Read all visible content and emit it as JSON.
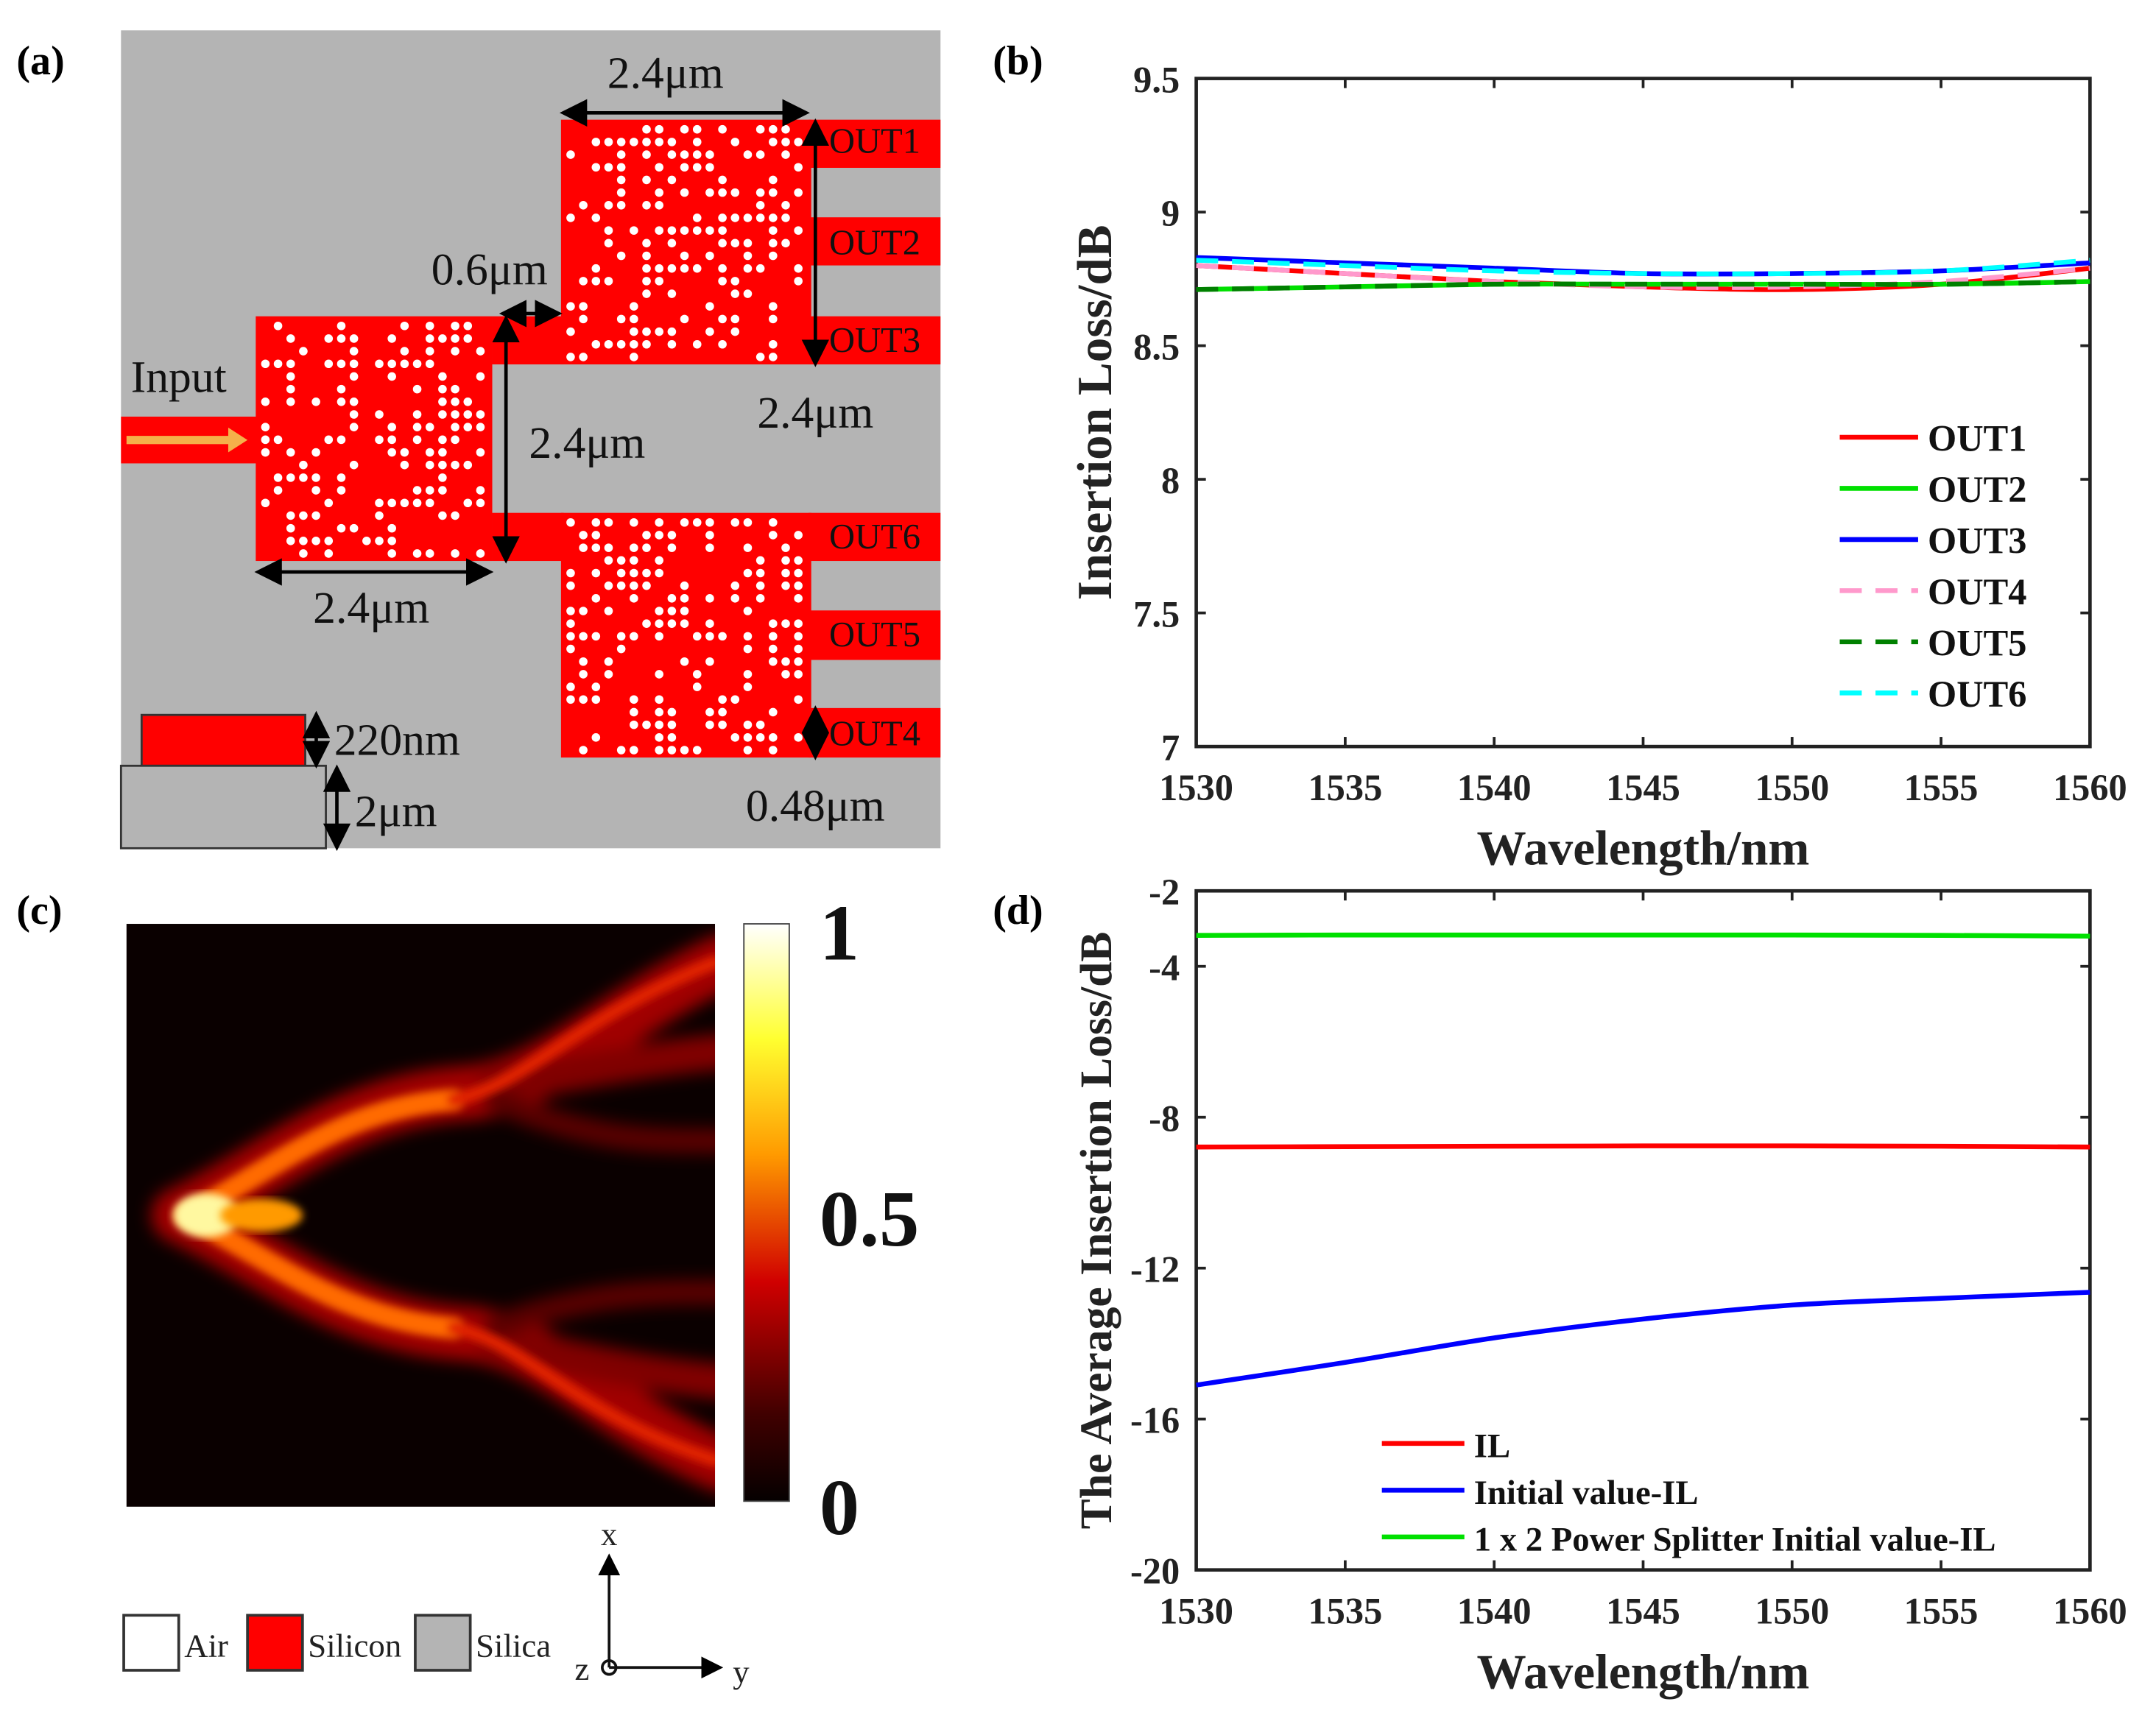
{
  "panel_labels": {
    "a": "(a)",
    "b": "(b)",
    "c": "(c)",
    "d": "(d)"
  },
  "panel_a": {
    "input_label": "Input",
    "dim_top": "2.4μm",
    "dim_gap": "0.6μm",
    "dim_first_height": "2.4μm",
    "dim_first_width": "2.4μm",
    "dim_right_spacing": "2.4μm",
    "dim_output_width": "0.48μm",
    "dim_silicon_thickness": "220nm",
    "dim_silica_thickness": "2μm",
    "outputs": [
      "OUT1",
      "OUT2",
      "OUT3",
      "OUT6",
      "OUT5",
      "OUT4"
    ],
    "colors": {
      "silicon": "#ff0000",
      "silica": "#b4b4b4",
      "air": "#ffffff",
      "arrow": "#f5b04a"
    }
  },
  "panel_c": {
    "colorbar_labels": [
      "1",
      "0.5",
      "0"
    ],
    "legend": [
      "Air",
      "Silicon",
      "Silica"
    ],
    "axes": {
      "x": "x",
      "y": "y",
      "z": "z"
    }
  },
  "chart_data": [
    {
      "type": "line",
      "panel": "b",
      "xlabel": "Wavelength/nm",
      "ylabel": "Insertion Loss/dB",
      "xlim": [
        1530,
        1560
      ],
      "ylim": [
        7,
        9.5
      ],
      "xticks": [
        "1530",
        "1535",
        "1540",
        "1545",
        "1550",
        "1555",
        "1560"
      ],
      "yticks": [
        "7",
        "7.5",
        "8",
        "8.5",
        "9",
        "9.5"
      ],
      "legend_position": "lower-right",
      "x": [
        1530,
        1535,
        1540,
        1545,
        1550,
        1555,
        1560
      ],
      "series": [
        {
          "name": "OUT1",
          "color": "#ff0000",
          "dash": false,
          "values": [
            8.8,
            8.77,
            8.74,
            8.72,
            8.71,
            8.73,
            8.79
          ]
        },
        {
          "name": "OUT2",
          "color": "#00e000",
          "dash": false,
          "values": [
            8.71,
            8.72,
            8.73,
            8.73,
            8.73,
            8.73,
            8.74
          ]
        },
        {
          "name": "OUT3",
          "color": "#0000ff",
          "dash": false,
          "values": [
            8.83,
            8.81,
            8.79,
            8.77,
            8.77,
            8.78,
            8.81
          ]
        },
        {
          "name": "OUT4",
          "color": "#ff99cc",
          "dash": true,
          "values": [
            8.8,
            8.77,
            8.74,
            8.72,
            8.72,
            8.74,
            8.79
          ]
        },
        {
          "name": "OUT5",
          "color": "#008000",
          "dash": true,
          "values": [
            8.71,
            8.72,
            8.73,
            8.73,
            8.73,
            8.73,
            8.74
          ]
        },
        {
          "name": "OUT6",
          "color": "#00ffff",
          "dash": true,
          "values": [
            8.82,
            8.8,
            8.78,
            8.77,
            8.77,
            8.78,
            8.82
          ]
        }
      ]
    },
    {
      "type": "line",
      "panel": "d",
      "xlabel": "Wavelength/nm",
      "ylabel": "The Average Insertion Loss/dB",
      "xlim": [
        1530,
        1560
      ],
      "ylim": [
        -20,
        -2
      ],
      "xticks": [
        "1530",
        "1535",
        "1540",
        "1545",
        "1550",
        "1555",
        "1560"
      ],
      "yticks": [
        "-20",
        "-16",
        "-12",
        "-8",
        "-4",
        "-2"
      ],
      "legend_position": "lower-center",
      "x": [
        1530,
        1535,
        1540,
        1545,
        1550,
        1555,
        1560
      ],
      "series": [
        {
          "name": "IL",
          "color": "#ff0000",
          "dash": false,
          "values": [
            -8.79,
            -8.78,
            -8.77,
            -8.76,
            -8.76,
            -8.77,
            -8.79
          ]
        },
        {
          "name": "Initial value-IL",
          "color": "#0000ff",
          "dash": false,
          "values": [
            -15.1,
            -14.5,
            -13.85,
            -13.35,
            -12.98,
            -12.8,
            -12.64
          ]
        },
        {
          "name": "1 x 2 Power Splitter Initial value-IL",
          "color": "#00e000",
          "dash": false,
          "values": [
            -3.18,
            -3.17,
            -3.17,
            -3.17,
            -3.17,
            -3.18,
            -3.2
          ]
        }
      ]
    }
  ]
}
